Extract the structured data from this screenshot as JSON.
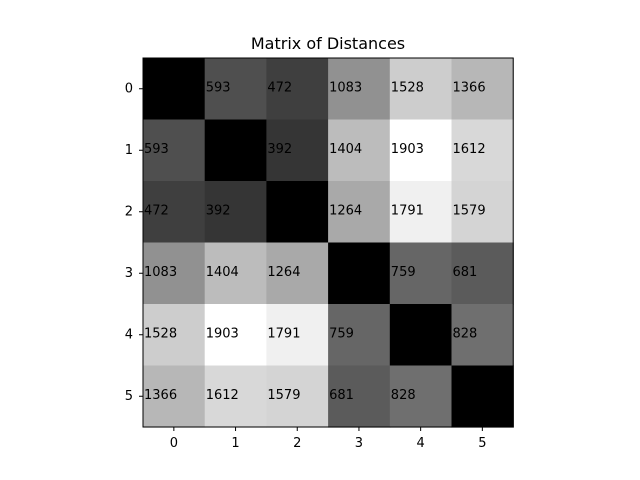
{
  "chart_data": {
    "type": "heatmap",
    "title": "Matrix of Distances",
    "xlabel": "",
    "ylabel": "",
    "x_tick_labels": [
      "0",
      "1",
      "2",
      "3",
      "4",
      "5"
    ],
    "y_tick_labels": [
      "0",
      "1",
      "2",
      "3",
      "4",
      "5"
    ],
    "matrix": [
      [
        0,
        593,
        472,
        1083,
        1528,
        1366
      ],
      [
        593,
        0,
        392,
        1404,
        1903,
        1612
      ],
      [
        472,
        392,
        0,
        1264,
        1791,
        1579
      ],
      [
        1083,
        1404,
        1264,
        0,
        759,
        681
      ],
      [
        1528,
        1903,
        1791,
        759,
        0,
        828
      ],
      [
        1366,
        1612,
        1579,
        681,
        828,
        0
      ]
    ],
    "cell_labels": [
      [
        "",
        "593",
        "472",
        "1083",
        "1528",
        "1366"
      ],
      [
        "593",
        "",
        "392",
        "1404",
        "1903",
        "1612"
      ],
      [
        "472",
        "392",
        "",
        "1264",
        "1791",
        "1579"
      ],
      [
        "1083",
        "1404",
        "1264",
        "",
        "759",
        "681"
      ],
      [
        "1528",
        "1903",
        "1791",
        "759",
        "",
        "828"
      ],
      [
        "1366",
        "1612",
        "1579",
        "681",
        "828",
        ""
      ]
    ],
    "colormap": "gray",
    "value_range": [
      0,
      1903
    ],
    "grid": false,
    "colors": {
      "low": "#000000",
      "high": "#ffffff",
      "text": "#000000",
      "axis": "#000000"
    }
  }
}
